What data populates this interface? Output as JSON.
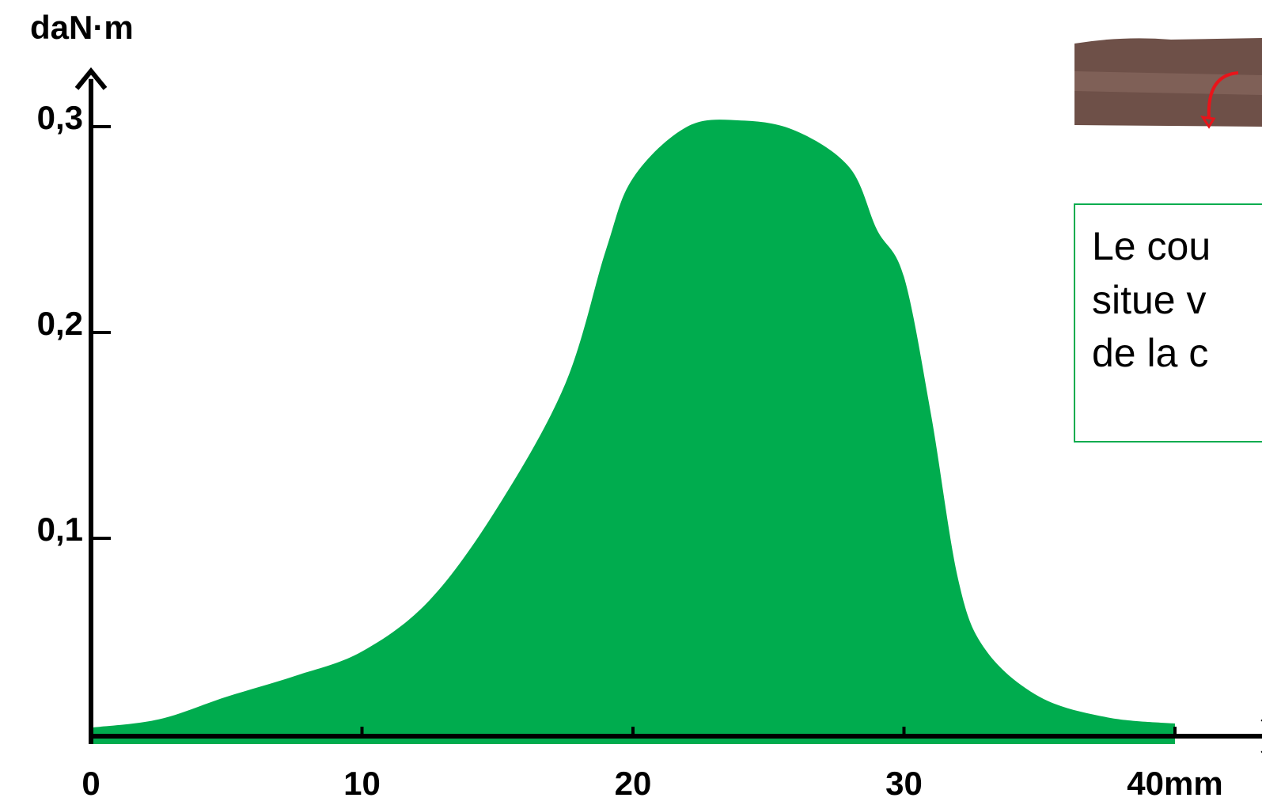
{
  "chart_data": {
    "type": "area",
    "y_label": "daN·m",
    "x": [
      0,
      2.5,
      5,
      7.5,
      10,
      12.5,
      15,
      17.5,
      19,
      20,
      22,
      24,
      26,
      28,
      29,
      30,
      31,
      32,
      33,
      35,
      37.5,
      40
    ],
    "values": [
      0.008,
      0.012,
      0.023,
      0.033,
      0.045,
      0.07,
      0.115,
      0.175,
      0.24,
      0.275,
      0.3,
      0.303,
      0.298,
      0.28,
      0.25,
      0.227,
      0.16,
      0.08,
      0.046,
      0.023,
      0.013,
      0.01
    ],
    "color": "#00ac4e",
    "xlim": [
      0,
      42
    ],
    "ylim": [
      0,
      0.327
    ],
    "xticks": [
      0,
      10,
      20,
      30,
      {
        "value": 40,
        "label": "40mm"
      }
    ],
    "yticks": [
      {
        "value": 0.1,
        "label": "0,1"
      },
      {
        "value": 0.2,
        "label": "0,2"
      },
      {
        "value": 0.3,
        "label": "0,3"
      }
    ],
    "annotation": [
      "Le cou",
      "situe v",
      "de la c"
    ]
  }
}
